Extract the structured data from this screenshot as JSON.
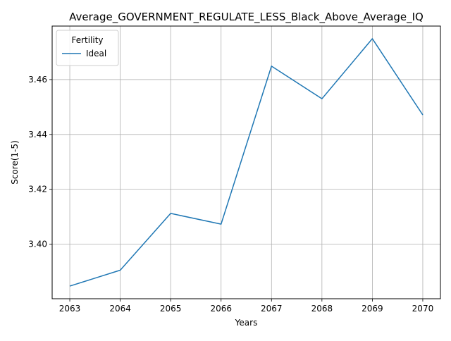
{
  "chart_data": {
    "type": "line",
    "title": "Average_GOVERNMENT_REGULATE_LESS_Black_Above_Average_IQ",
    "xlabel": "Years",
    "ylabel": "Score(1-5)",
    "x": [
      2063,
      2064,
      2065,
      2066,
      2067,
      2068,
      2069,
      2070
    ],
    "x_tick_labels": [
      "2063",
      "2064",
      "2065",
      "2066",
      "2067",
      "2068",
      "2069",
      "2070"
    ],
    "xlim": [
      2062.65,
      2070.35
    ],
    "y_ticks": [
      3.4,
      3.42,
      3.44,
      3.46
    ],
    "y_tick_labels": [
      "3.40",
      "3.42",
      "3.44",
      "3.46"
    ],
    "ylim": [
      3.3801,
      3.4795
    ],
    "grid": true,
    "legend": {
      "title": "Fertility",
      "placement": "top-left"
    },
    "series": [
      {
        "name": "Ideal",
        "color": "#1f77b4",
        "values": [
          3.3847,
          3.3905,
          3.4112,
          3.4073,
          3.4649,
          3.453,
          3.4749,
          3.4471
        ]
      }
    ]
  }
}
